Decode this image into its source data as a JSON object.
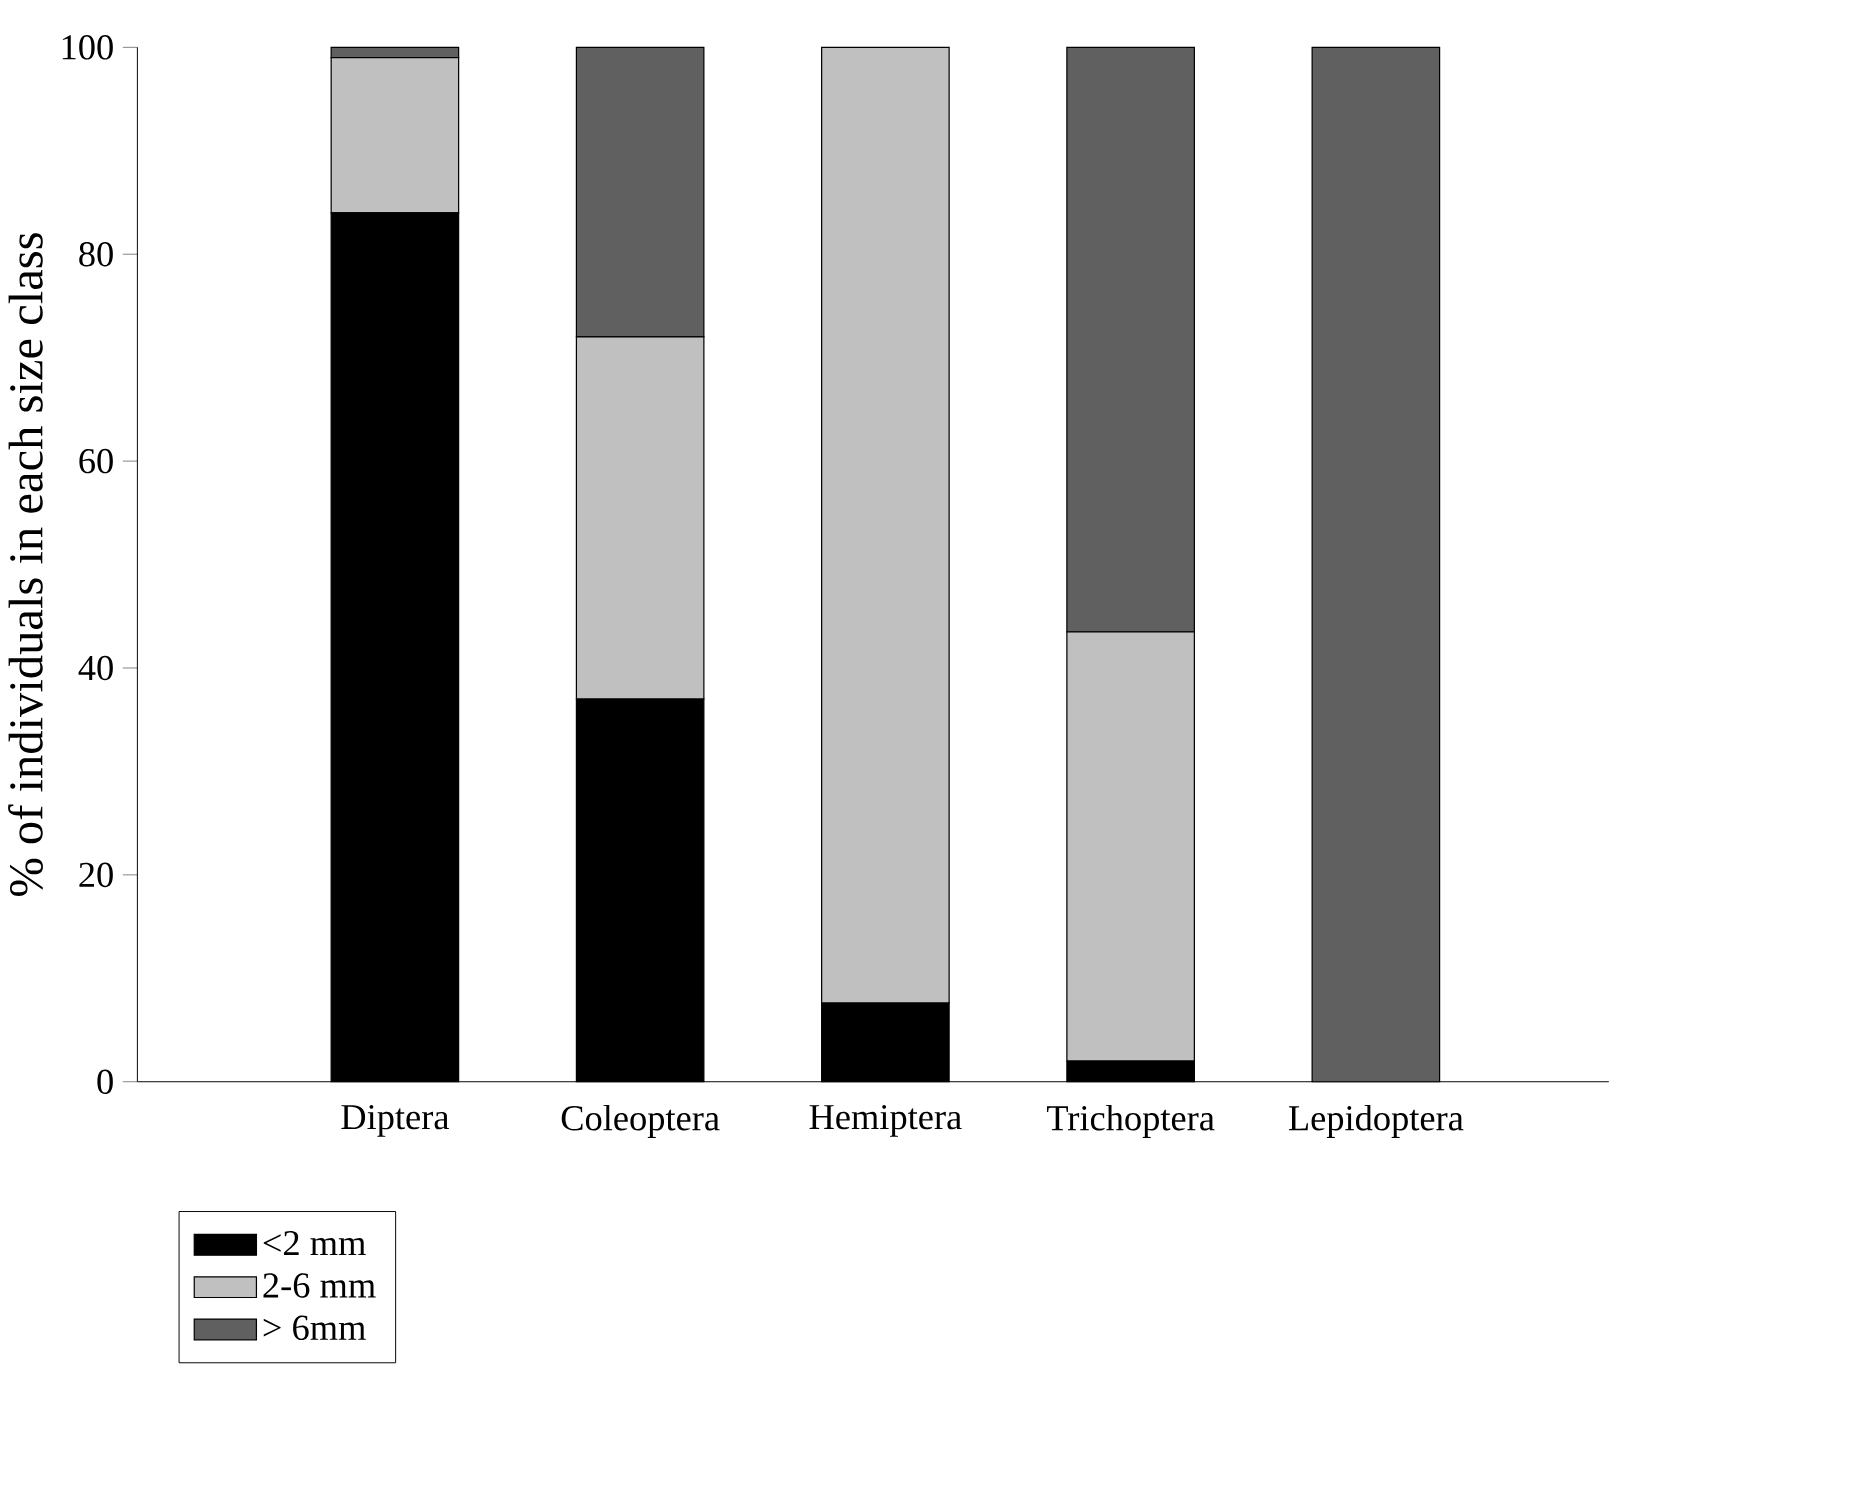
{
  "chart_data": {
    "type": "bar",
    "stacked": true,
    "ylabel": "% of individuals in each size class",
    "categories": [
      "Diptera",
      "Coleoptera",
      "Hemiptera",
      "Trichoptera",
      "Lepidoptera"
    ],
    "series": [
      {
        "name": "<2 mm",
        "color": "#000000",
        "values": [
          84,
          37,
          7.6,
          2,
          0
        ]
      },
      {
        "name": "2-6 mm",
        "color": "#c0c0c0",
        "values": [
          15,
          35,
          92.4,
          41.5,
          0
        ]
      },
      {
        "name": "> 6mm",
        "color": "#606060",
        "values": [
          1,
          28,
          0,
          56.5,
          100
        ]
      }
    ],
    "ylim": [
      0,
      100
    ],
    "yticks": [
      0,
      20,
      40,
      60,
      80,
      100
    ],
    "legend": "bottom left",
    "grid": false
  }
}
